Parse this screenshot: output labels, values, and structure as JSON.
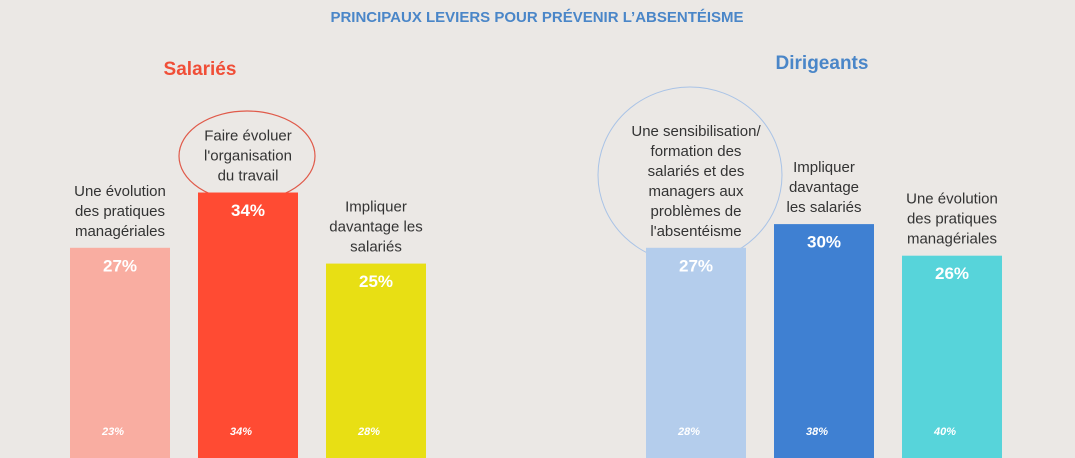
{
  "title": "PRINCIPAUX LEVIERS POUR PRÉVENIR L’ABSENTÉISME",
  "chart_data": [
    {
      "type": "bar",
      "title": "Salariés",
      "categories": [
        [
          "Une évolution",
          "des pratiques",
          "managériales"
        ],
        [
          "Faire évoluer",
          "l'organisation",
          "du travail"
        ],
        [
          "Impliquer",
          "davantage les",
          "salariés"
        ]
      ],
      "values": [
        27,
        34,
        25
      ],
      "value_labels": [
        "27%",
        "34%",
        "25%"
      ],
      "bottom_labels": [
        "23%",
        "34%",
        "28%"
      ],
      "colors": [
        "#f9ada1",
        "#ff4b33",
        "#e8df14"
      ],
      "ylim": [
        0,
        58
      ]
    },
    {
      "type": "bar",
      "title": "Dirigeants",
      "categories": [
        [
          "Une sensibilisation/",
          "formation des",
          "salariés et des",
          "managers aux",
          "problèmes de",
          "l'absentéisme"
        ],
        [
          "Impliquer",
          "davantage",
          "les salariés"
        ],
        [
          "Une évolution",
          "des pratiques",
          "managériales"
        ]
      ],
      "values": [
        27,
        30,
        26
      ],
      "value_labels": [
        "27%",
        "30%",
        "26%"
      ],
      "bottom_labels": [
        "28%",
        "38%",
        "40%"
      ],
      "colors": [
        "#b4cdec",
        "#3f80d2",
        "#57d4da"
      ],
      "ylim": [
        0,
        58
      ]
    }
  ]
}
